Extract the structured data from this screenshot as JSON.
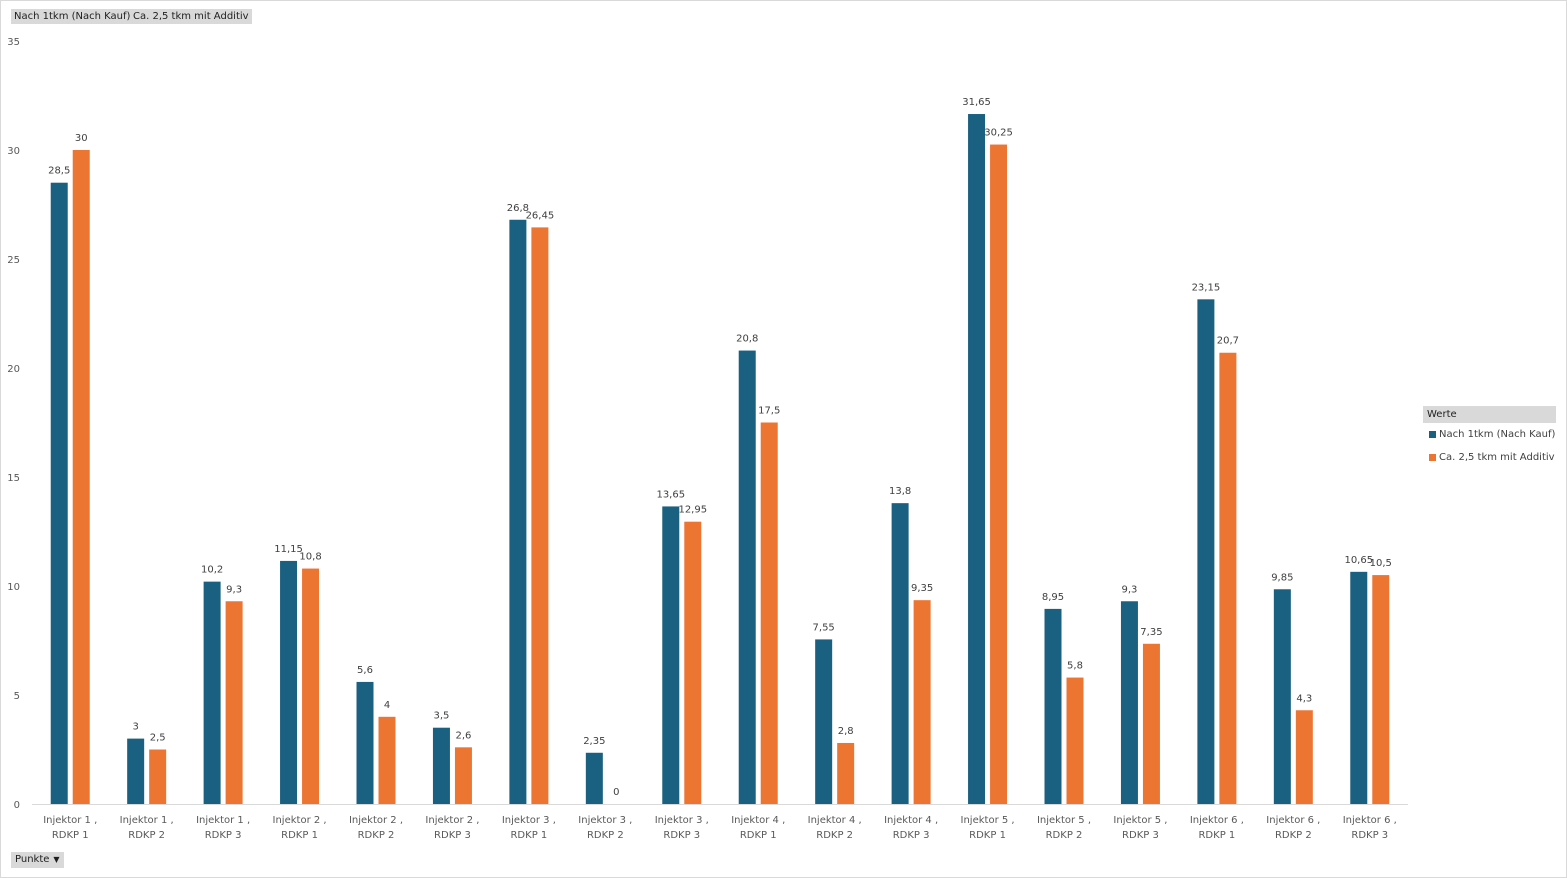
{
  "field_buttons": [
    "Nach 1tkm (Nach Kauf)",
    "Ca. 2,5 tkm mit Additiv"
  ],
  "axis_field_button": {
    "label": "Punkte",
    "icon": "dropdown-arrow-icon"
  },
  "legend": {
    "title": "Werte",
    "items": [
      {
        "label": "Nach 1tkm (Nach Kauf)",
        "color": "#1a6080"
      },
      {
        "label": "Ca. 2,5 tkm mit Additiv",
        "color": "#ed7532"
      }
    ]
  },
  "chart_data": {
    "type": "bar",
    "categories": [
      [
        "Injektor 1 ,",
        "RDKP 1"
      ],
      [
        "Injektor 1 ,",
        "RDKP 2"
      ],
      [
        "Injektor 1 ,",
        "RDKP 3"
      ],
      [
        "Injektor 2 ,",
        "RDKP 1"
      ],
      [
        "Injektor 2 ,",
        "RDKP 2"
      ],
      [
        "Injektor 2 ,",
        "RDKP 3"
      ],
      [
        "Injektor 3 ,",
        "RDKP 1"
      ],
      [
        "Injektor 3 ,",
        "RDKP 2"
      ],
      [
        "Injektor 3 ,",
        "RDKP 3"
      ],
      [
        "Injektor 4 ,",
        "RDKP 1"
      ],
      [
        "Injektor 4 ,",
        "RDKP 2"
      ],
      [
        "Injektor 4 ,",
        "RDKP 3"
      ],
      [
        "Injektor 5 ,",
        "RDKP 1"
      ],
      [
        "Injektor 5 ,",
        "RDKP 2"
      ],
      [
        "Injektor 5 ,",
        "RDKP 3"
      ],
      [
        "Injektor 6 ,",
        "RDKP 1"
      ],
      [
        "Injektor 6 ,",
        "RDKP 2"
      ],
      [
        "Injektor 6 ,",
        "RDKP 3"
      ]
    ],
    "series": [
      {
        "name": "Nach 1tkm (Nach Kauf)",
        "color": "#1a6080",
        "values": [
          28.5,
          3,
          10.2,
          11.15,
          5.6,
          3.5,
          26.8,
          2.35,
          13.65,
          20.8,
          7.55,
          13.8,
          31.65,
          8.95,
          9.3,
          23.15,
          9.85,
          10.65
        ],
        "labels": [
          "28,5",
          "3",
          "10,2",
          "11,15",
          "5,6",
          "3,5",
          "26,8",
          "2,35",
          "13,65",
          "20,8",
          "7,55",
          "13,8",
          "31,65",
          "8,95",
          "9,3",
          "23,15",
          "9,85",
          "10,65"
        ]
      },
      {
        "name": "Ca. 2,5 tkm mit Additiv",
        "color": "#ed7532",
        "values": [
          30,
          2.5,
          9.3,
          10.8,
          4,
          2.6,
          26.45,
          0,
          12.95,
          17.5,
          2.8,
          9.35,
          30.25,
          5.8,
          7.35,
          20.7,
          4.3,
          10.5
        ],
        "labels": [
          "30",
          "2,5",
          "9,3",
          "10,8",
          "4",
          "2,6",
          "26,45",
          "0",
          "12,95",
          "17,5",
          "2,8",
          "9,35",
          "30,25",
          "5,8",
          "7,35",
          "20,7",
          "4,3",
          "10,5"
        ]
      }
    ],
    "y_ticks": [
      "0",
      "5",
      "10",
      "15",
      "20",
      "25",
      "30",
      "35"
    ],
    "ylim": [
      0,
      35
    ],
    "grid": false,
    "legend_position": "right"
  }
}
